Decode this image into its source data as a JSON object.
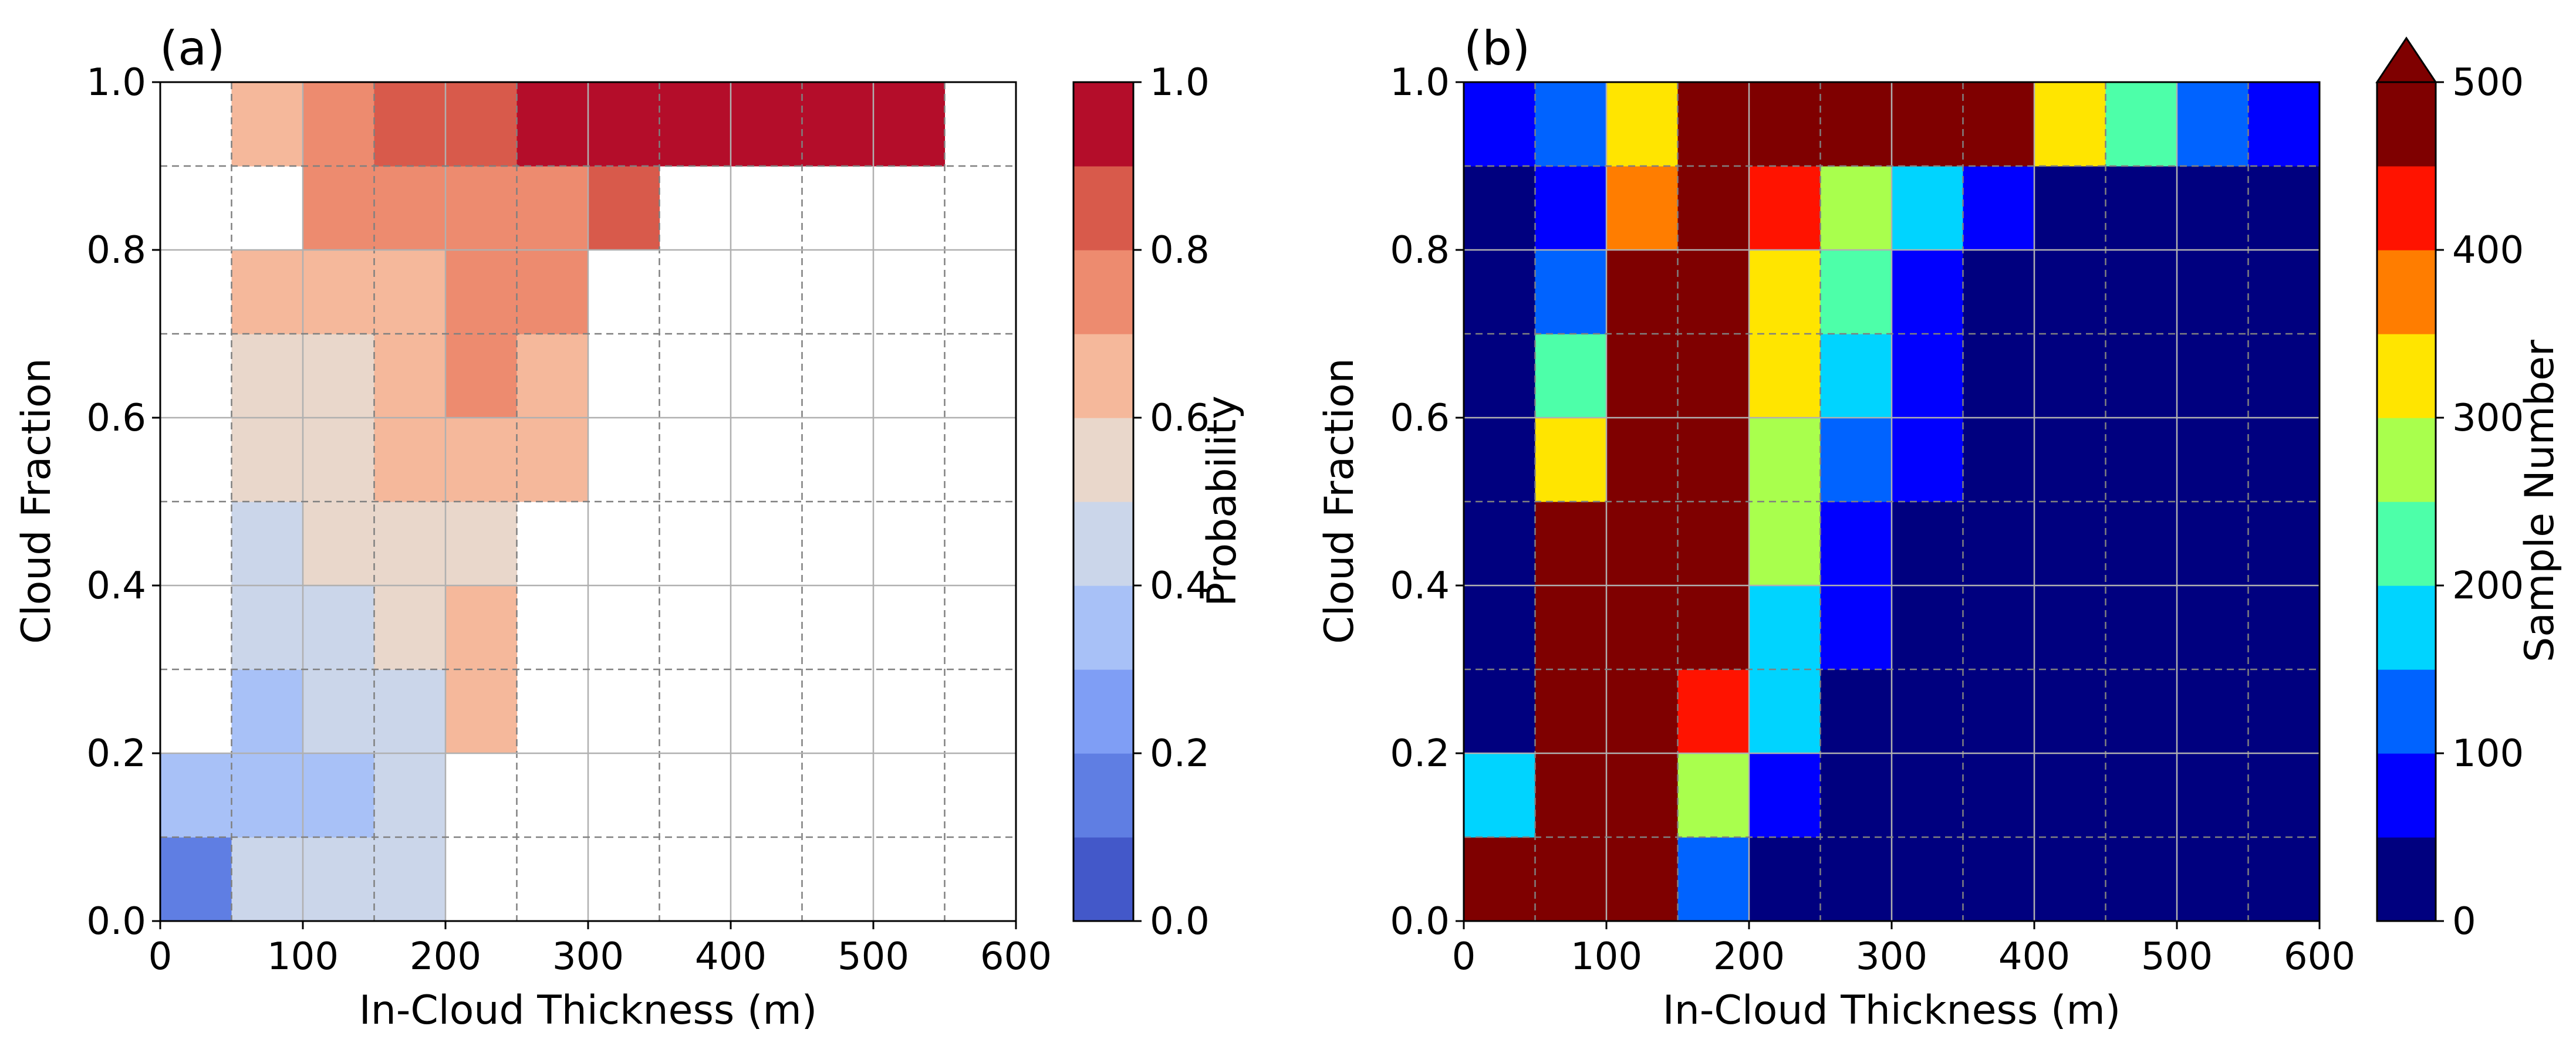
{
  "chart_data": [
    {
      "type": "heatmap",
      "panel_label": "(a)",
      "xlabel": "In-Cloud Thickness (m)",
      "ylabel": "Cloud Fraction",
      "xlim": [
        0,
        600
      ],
      "ylim": [
        0,
        1
      ],
      "xticks": [
        "0",
        "100",
        "200",
        "300",
        "400",
        "500",
        "600"
      ],
      "yticks": [
        "0.0",
        "0.2",
        "0.4",
        "0.6",
        "0.8",
        "1.0"
      ],
      "x_bin_width": 50,
      "y_bin_width": 0.1,
      "colorbar": {
        "label": "Probability",
        "levels": [
          0,
          0.1,
          0.2,
          0.3,
          0.4,
          0.5,
          0.6,
          0.7,
          0.8,
          0.9,
          1.0
        ],
        "colors": [
          "#4358c9",
          "#5f7ee3",
          "#7f9ef5",
          "#a8c1f7",
          "#cbd6ea",
          "#e9d7cb",
          "#f5b89b",
          "#ed8b6f",
          "#d85a4b",
          "#b40d2a"
        ],
        "ticks": [
          "0.0",
          "0.2",
          "0.4",
          "0.6",
          "0.8",
          "1.0"
        ],
        "extend_max": false
      },
      "values": [
        [
          0.15,
          0.42,
          0.42,
          0.45,
          null,
          null,
          null,
          null,
          null,
          null,
          null,
          null
        ],
        [
          0.35,
          0.38,
          0.35,
          0.45,
          null,
          null,
          null,
          null,
          null,
          null,
          null,
          null
        ],
        [
          null,
          0.35,
          0.45,
          0.45,
          0.65,
          null,
          null,
          null,
          null,
          null,
          null,
          null
        ],
        [
          null,
          0.45,
          0.45,
          0.55,
          0.65,
          null,
          null,
          null,
          null,
          null,
          null,
          null
        ],
        [
          null,
          0.45,
          0.55,
          0.55,
          0.55,
          null,
          null,
          null,
          null,
          null,
          null,
          null
        ],
        [
          null,
          0.55,
          0.55,
          0.65,
          0.65,
          0.65,
          null,
          null,
          null,
          null,
          null,
          null
        ],
        [
          null,
          0.55,
          0.55,
          0.65,
          0.75,
          0.65,
          null,
          null,
          null,
          null,
          null,
          null
        ],
        [
          null,
          0.65,
          0.65,
          0.65,
          0.75,
          0.75,
          null,
          null,
          null,
          null,
          null,
          null
        ],
        [
          null,
          null,
          0.75,
          0.75,
          0.75,
          0.75,
          0.85,
          null,
          null,
          null,
          null,
          null
        ],
        [
          null,
          0.65,
          0.75,
          0.85,
          0.85,
          0.95,
          0.95,
          0.95,
          0.95,
          0.95,
          0.95,
          null
        ]
      ]
    },
    {
      "type": "heatmap",
      "panel_label": "(b)",
      "xlabel": "In-Cloud Thickness (m)",
      "ylabel": "Cloud Fraction",
      "xlim": [
        0,
        600
      ],
      "ylim": [
        0,
        1
      ],
      "xticks": [
        "0",
        "100",
        "200",
        "300",
        "400",
        "500",
        "600"
      ],
      "yticks": [
        "0.0",
        "0.2",
        "0.4",
        "0.6",
        "0.8",
        "1.0"
      ],
      "x_bin_width": 50,
      "y_bin_width": 0.1,
      "colorbar": {
        "label": "Sample Number",
        "levels": [
          0,
          50,
          100,
          150,
          200,
          250,
          300,
          350,
          400,
          450,
          500
        ],
        "colors": [
          "#00007f",
          "#0000ff",
          "#0063ff",
          "#00d4ff",
          "#4dffa9",
          "#a9ff4d",
          "#ffe500",
          "#ff7d00",
          "#ff1300",
          "#7f0000"
        ],
        "ticks": [
          "0",
          "100",
          "200",
          "300",
          "400",
          "500"
        ],
        "extend_max": true
      },
      "values": [
        [
          600,
          600,
          600,
          125,
          25,
          25,
          25,
          25,
          25,
          25,
          25,
          25
        ],
        [
          175,
          600,
          600,
          275,
          75,
          25,
          25,
          25,
          25,
          25,
          25,
          25
        ],
        [
          25,
          600,
          600,
          425,
          175,
          25,
          25,
          25,
          25,
          25,
          25,
          25
        ],
        [
          25,
          600,
          600,
          600,
          175,
          75,
          25,
          25,
          25,
          25,
          25,
          25
        ],
        [
          25,
          600,
          600,
          600,
          275,
          75,
          25,
          25,
          25,
          25,
          25,
          25
        ],
        [
          25,
          325,
          600,
          600,
          275,
          125,
          75,
          25,
          25,
          25,
          25,
          25
        ],
        [
          25,
          225,
          600,
          600,
          325,
          175,
          75,
          25,
          25,
          25,
          25,
          25
        ],
        [
          25,
          125,
          600,
          600,
          325,
          225,
          75,
          25,
          25,
          25,
          25,
          25
        ],
        [
          25,
          75,
          375,
          600,
          425,
          275,
          175,
          75,
          25,
          25,
          25,
          25
        ],
        [
          75,
          125,
          325,
          600,
          600,
          600,
          600,
          600,
          325,
          225,
          125,
          75
        ]
      ]
    }
  ]
}
